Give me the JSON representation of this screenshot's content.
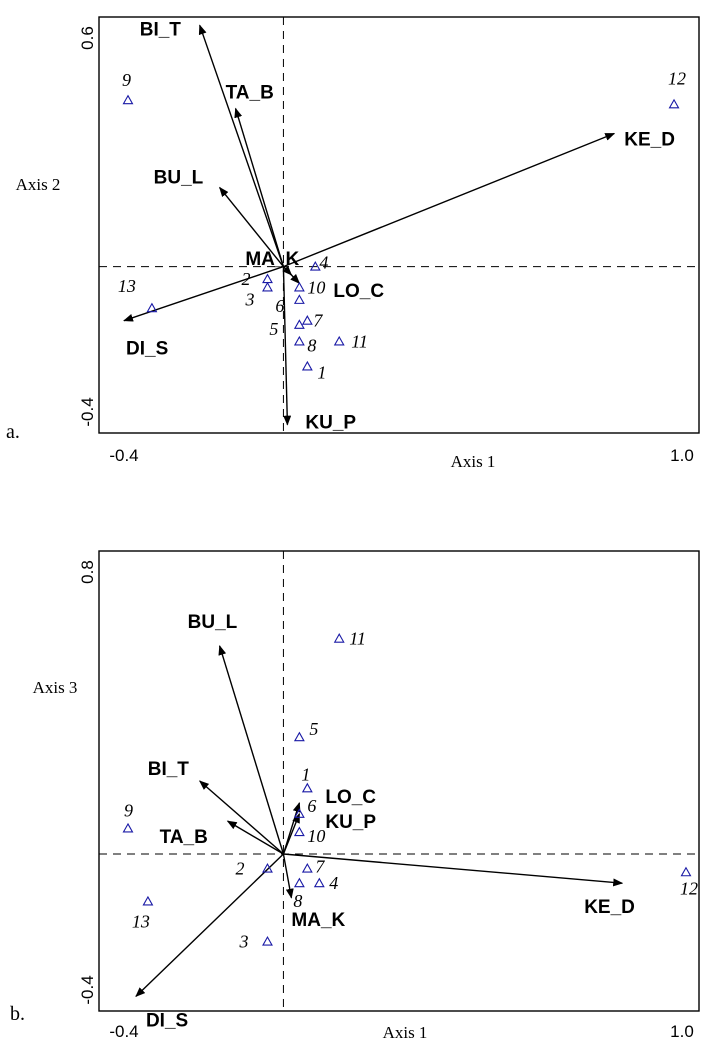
{
  "chart_data": [
    {
      "type": "scatter",
      "panel_label": "a.",
      "xlabel": "Axis 1",
      "ylabel": "Axis 2",
      "xlim": [
        -0.4,
        1.0
      ],
      "ylim": [
        -0.4,
        0.6
      ],
      "x_tick_labels": [
        "-0.4",
        "1.0"
      ],
      "y_tick_labels": [
        "0.6",
        "-0.4"
      ],
      "vectors": [
        {
          "name": "BI_T",
          "x": -0.21,
          "y": 0.58
        },
        {
          "name": "TA_B",
          "x": -0.12,
          "y": 0.38
        },
        {
          "name": "KE_D",
          "x": 0.83,
          "y": 0.32
        },
        {
          "name": "BU_L",
          "x": -0.16,
          "y": 0.19
        },
        {
          "name": "MA_K",
          "x": 0.04,
          "y": -0.04
        },
        {
          "name": "LO_C",
          "x": 0.02,
          "y": -0.02
        },
        {
          "name": "DI_S",
          "x": -0.4,
          "y": -0.13
        },
        {
          "name": "KU_P",
          "x": 0.01,
          "y": -0.38
        }
      ],
      "sites": [
        {
          "label": "9",
          "x": -0.39,
          "y": 0.4
        },
        {
          "label": "12",
          "x": 0.98,
          "y": 0.39
        },
        {
          "label": "4",
          "x": 0.08,
          "y": 0.0
        },
        {
          "label": "2",
          "x": -0.04,
          "y": -0.03
        },
        {
          "label": "3",
          "x": -0.04,
          "y": -0.05
        },
        {
          "label": "13",
          "x": -0.33,
          "y": -0.1
        },
        {
          "label": "10",
          "x": 0.04,
          "y": -0.05
        },
        {
          "label": "6",
          "x": 0.04,
          "y": -0.08
        },
        {
          "label": "7",
          "x": 0.06,
          "y": -0.13
        },
        {
          "label": "5",
          "x": 0.04,
          "y": -0.14
        },
        {
          "label": "8",
          "x": 0.04,
          "y": -0.18
        },
        {
          "label": "11",
          "x": 0.14,
          "y": -0.18
        },
        {
          "label": "1",
          "x": 0.06,
          "y": -0.24
        }
      ]
    },
    {
      "type": "scatter",
      "panel_label": "b.",
      "xlabel": "Axis 1",
      "ylabel": "Axis 3",
      "xlim": [
        -0.4,
        1.0
      ],
      "ylim": [
        -0.4,
        0.8
      ],
      "x_tick_labels": [
        "-0.4",
        "1.0"
      ],
      "y_tick_labels": [
        "0.8",
        "-0.4"
      ],
      "vectors": [
        {
          "name": "BU_L",
          "x": -0.16,
          "y": 0.57
        },
        {
          "name": "BI_T",
          "x": -0.21,
          "y": 0.2
        },
        {
          "name": "TA_B",
          "x": -0.14,
          "y": 0.09
        },
        {
          "name": "LO_C",
          "x": 0.04,
          "y": 0.14
        },
        {
          "name": "KU_P",
          "x": 0.04,
          "y": 0.11
        },
        {
          "name": "KE_D",
          "x": 0.85,
          "y": -0.08
        },
        {
          "name": "MA_K",
          "x": 0.02,
          "y": -0.12
        },
        {
          "name": "DI_S",
          "x": -0.37,
          "y": -0.39
        }
      ],
      "sites": [
        {
          "label": "11",
          "x": 0.14,
          "y": 0.59
        },
        {
          "label": "5",
          "x": 0.04,
          "y": 0.32
        },
        {
          "label": "1",
          "x": 0.06,
          "y": 0.18
        },
        {
          "label": "6",
          "x": 0.04,
          "y": 0.11
        },
        {
          "label": "10",
          "x": 0.04,
          "y": 0.06
        },
        {
          "label": "9",
          "x": -0.39,
          "y": 0.07
        },
        {
          "label": "7",
          "x": 0.06,
          "y": -0.04
        },
        {
          "label": "4",
          "x": 0.09,
          "y": -0.08
        },
        {
          "label": "8",
          "x": 0.04,
          "y": -0.08
        },
        {
          "label": "2",
          "x": -0.04,
          "y": -0.04
        },
        {
          "label": "13",
          "x": -0.34,
          "y": -0.13
        },
        {
          "label": "3",
          "x": -0.04,
          "y": -0.24
        },
        {
          "label": "12",
          "x": 1.01,
          "y": -0.05
        }
      ]
    }
  ]
}
